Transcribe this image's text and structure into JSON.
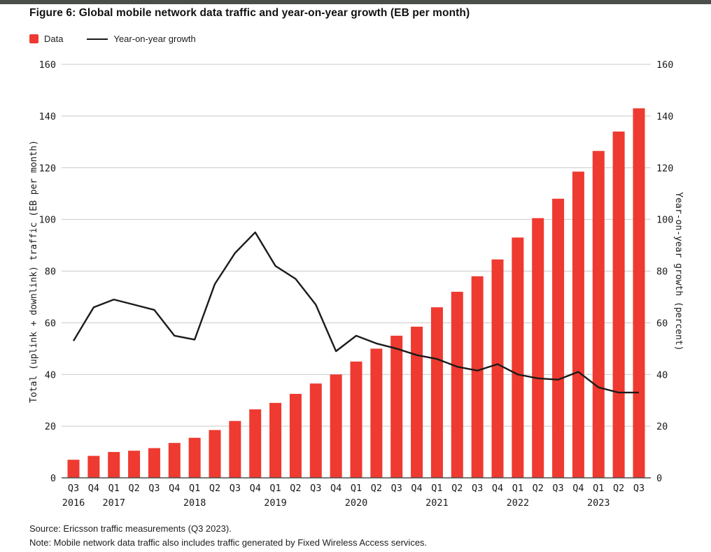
{
  "figure": {
    "title": "Figure 6: Global mobile network data traffic and year-on-year growth (EB per month)",
    "source": "Source: Ericsson traffic measurements (Q3 2023).",
    "note": "Note: Mobile network data traffic also includes traffic generated by Fixed Wireless Access services."
  },
  "legend": {
    "bar_label": "Data",
    "line_label": "Year-on-year growth"
  },
  "colors": {
    "bar": "#ee3a30",
    "line": "#1b1b1b",
    "grid": "#c9c9c9",
    "baseline": "#4f4f4f",
    "tick_text": "#1a1a1a"
  },
  "chart_data": {
    "type": "bar+line combo",
    "title": "Figure 6: Global mobile network data traffic and year-on-year growth (EB per month)",
    "categories": [
      "Q3 2016",
      "Q4 2016",
      "Q1 2017",
      "Q2 2017",
      "Q3 2017",
      "Q4 2017",
      "Q1 2018",
      "Q2 2018",
      "Q3 2018",
      "Q4 2018",
      "Q1 2019",
      "Q2 2019",
      "Q3 2019",
      "Q4 2019",
      "Q1 2020",
      "Q2 2020",
      "Q3 2020",
      "Q4 2020",
      "Q1 2021",
      "Q2 2021",
      "Q3 2021",
      "Q4 2021",
      "Q1 2022",
      "Q2 2022",
      "Q3 2022",
      "Q4 2022",
      "Q1 2023",
      "Q2 2023",
      "Q3 2023"
    ],
    "quarter_tick_labels": [
      "Q3",
      "Q4",
      "Q1",
      "Q2",
      "Q3",
      "Q4",
      "Q1",
      "Q2",
      "Q3",
      "Q4",
      "Q1",
      "Q2",
      "Q3",
      "Q4",
      "Q1",
      "Q2",
      "Q3",
      "Q4",
      "Q1",
      "Q2",
      "Q3",
      "Q4",
      "Q1",
      "Q2",
      "Q3",
      "Q4",
      "Q1",
      "Q2",
      "Q3"
    ],
    "year_labels": [
      {
        "label": "2016",
        "index": 0
      },
      {
        "label": "2017",
        "index": 2
      },
      {
        "label": "2018",
        "index": 6
      },
      {
        "label": "2019",
        "index": 10
      },
      {
        "label": "2020",
        "index": 14
      },
      {
        "label": "2021",
        "index": 18
      },
      {
        "label": "2022",
        "index": 22
      },
      {
        "label": "2023",
        "index": 26
      }
    ],
    "series": [
      {
        "name": "Data",
        "type": "bar",
        "axis": "left",
        "color": "#ee3a30",
        "values": [
          7,
          8.5,
          10,
          10.5,
          11.5,
          13.5,
          15.5,
          18.5,
          22,
          26.5,
          29,
          32.5,
          36.5,
          40,
          45,
          50,
          55,
          58.5,
          66,
          72,
          78,
          84.5,
          93,
          100.5,
          108,
          118.5,
          126.5,
          134,
          143
        ]
      },
      {
        "name": "Year-on-year growth",
        "type": "line",
        "axis": "right",
        "color": "#1b1b1b",
        "values": [
          53,
          66,
          69,
          67,
          65,
          55,
          53.5,
          75,
          87,
          95,
          82,
          77,
          67,
          49,
          55,
          52,
          50,
          47.5,
          46,
          43,
          41.5,
          44,
          40,
          38.5,
          38,
          41,
          35,
          33,
          33
        ]
      }
    ],
    "left_axis": {
      "label": "Total (uplink + downlink) traffic (EB per month)",
      "min": 0,
      "max": 160,
      "tick_step": 20,
      "ticks": [
        0,
        20,
        40,
        60,
        80,
        100,
        120,
        140,
        160
      ]
    },
    "right_axis": {
      "label": "Year-on-year growth (percent)",
      "min": 0,
      "max": 160,
      "tick_step": 20,
      "ticks": [
        0,
        20,
        40,
        60,
        80,
        100,
        120,
        140,
        160
      ]
    },
    "grid": true,
    "legend_position": "top-left"
  }
}
